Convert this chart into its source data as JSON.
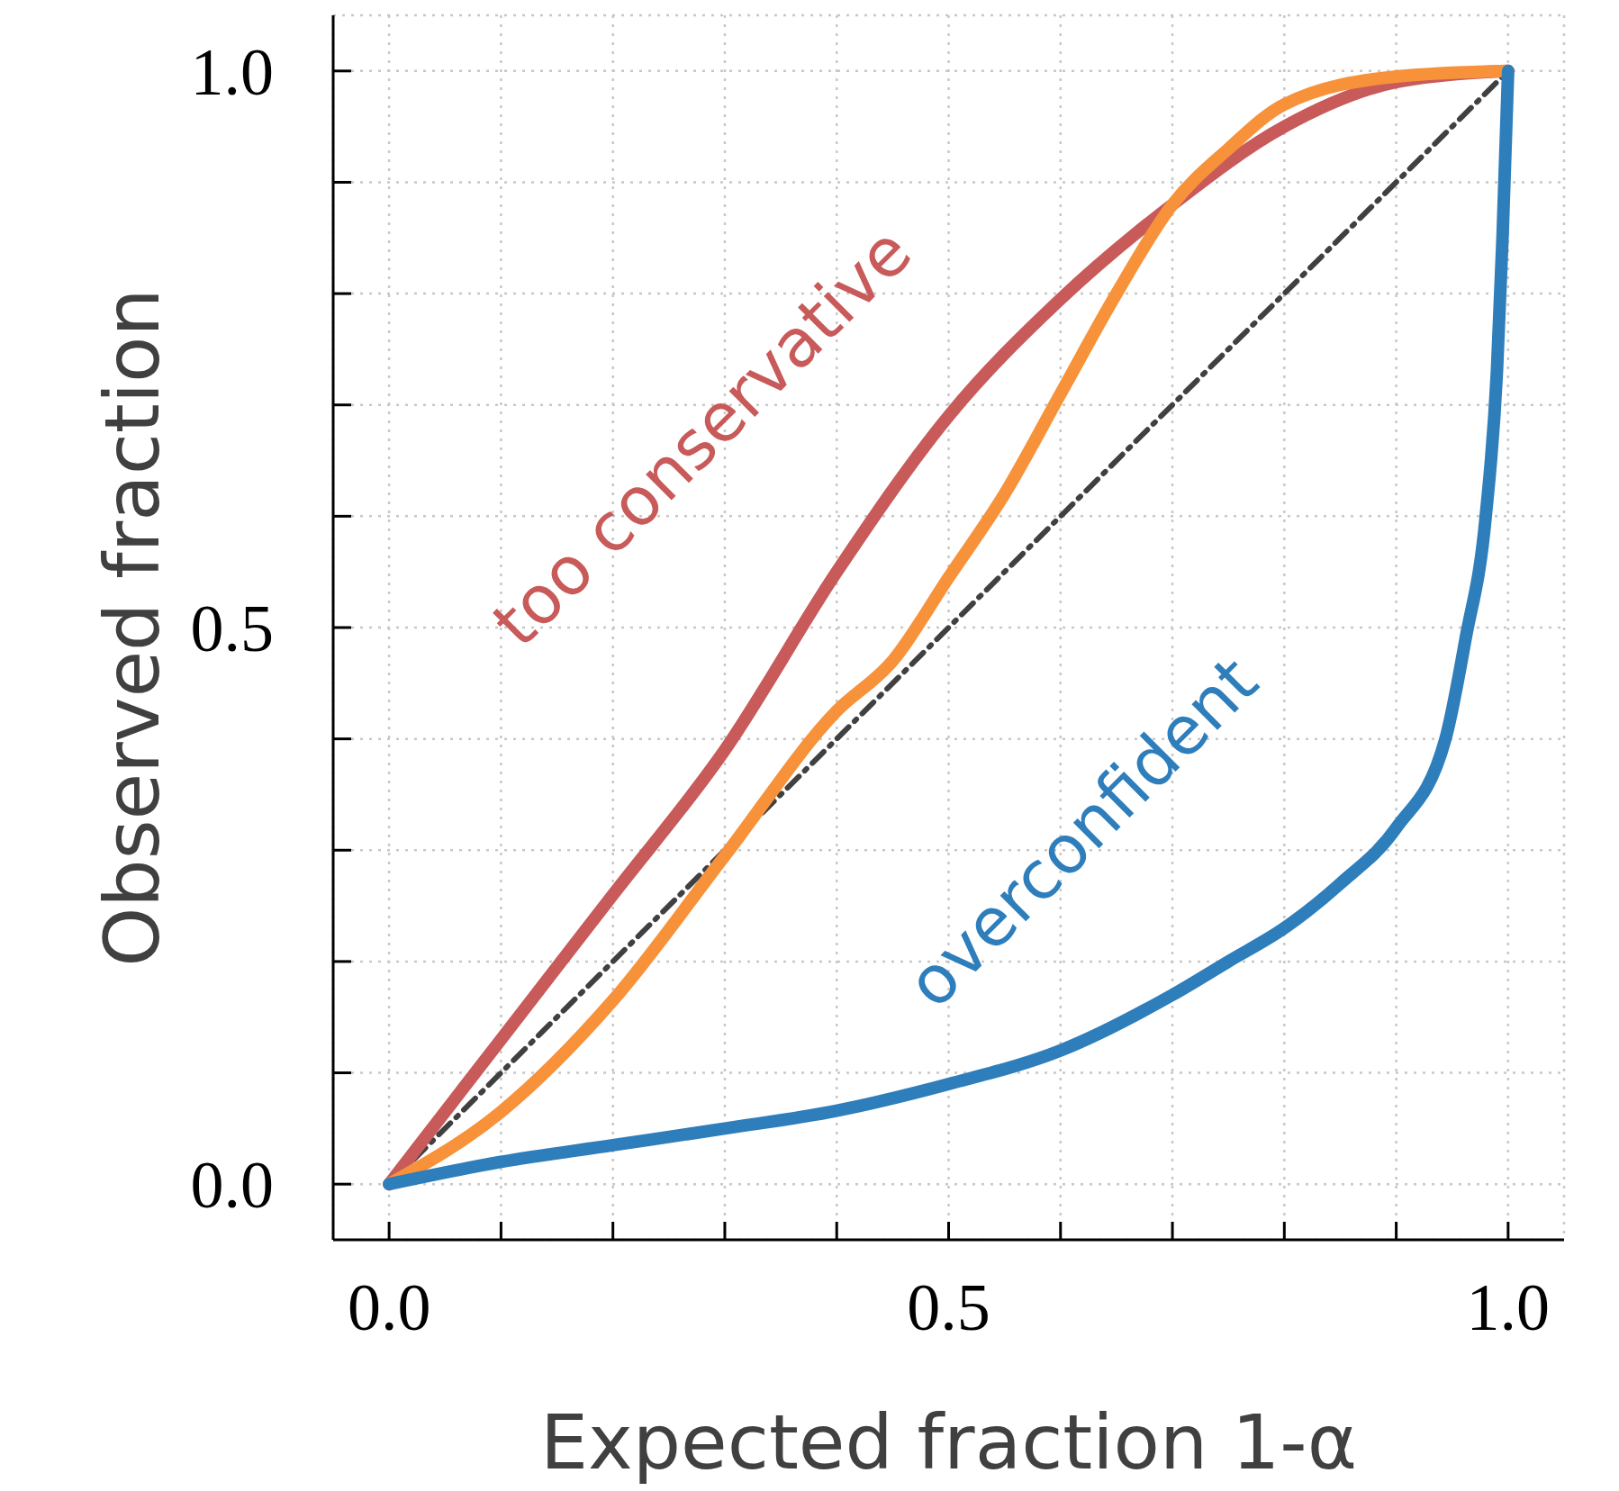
{
  "chart_data": {
    "type": "line",
    "xlabel": "Expected fraction 1-α",
    "ylabel": "Observed fraction",
    "xlim": [
      -0.05,
      1.05
    ],
    "ylim": [
      -0.05,
      1.05
    ],
    "xticks": [
      {
        "value": 0,
        "label": "0.0"
      },
      {
        "value": 0.1,
        "label": null
      },
      {
        "value": 0.2,
        "label": null
      },
      {
        "value": 0.3,
        "label": null
      },
      {
        "value": 0.4,
        "label": null
      },
      {
        "value": 0.5,
        "label": "0.5"
      },
      {
        "value": 0.6,
        "label": null
      },
      {
        "value": 0.7,
        "label": null
      },
      {
        "value": 0.8,
        "label": null
      },
      {
        "value": 0.9,
        "label": null
      },
      {
        "value": 1,
        "label": "1.0"
      }
    ],
    "yticks": [
      {
        "value": 0,
        "label": "0.0"
      },
      {
        "value": 0.1,
        "label": null
      },
      {
        "value": 0.2,
        "label": null
      },
      {
        "value": 0.3,
        "label": null
      },
      {
        "value": 0.4,
        "label": null
      },
      {
        "value": 0.5,
        "label": "0.5"
      },
      {
        "value": 0.6,
        "label": null
      },
      {
        "value": 0.7,
        "label": null
      },
      {
        "value": 0.8,
        "label": null
      },
      {
        "value": 0.9,
        "label": null
      },
      {
        "value": 1,
        "label": "1.0"
      }
    ],
    "grid": true,
    "marker": "none",
    "series": [
      {
        "color": "#404040",
        "line_style": "dashed",
        "x": [
          0,
          1
        ],
        "values": [
          0,
          1
        ]
      },
      {
        "color": "#c85a5a",
        "line_style": "solid",
        "x": [
          0,
          0.1,
          0.2,
          0.3,
          0.4,
          0.5,
          0.6,
          0.7,
          0.8,
          0.9,
          1
        ],
        "values": [
          0,
          0.13,
          0.26,
          0.39,
          0.55,
          0.69,
          0.795,
          0.88,
          0.95,
          0.99,
          1
        ]
      },
      {
        "color": "#f7923a",
        "line_style": "solid",
        "x": [
          0,
          0.1,
          0.2,
          0.3,
          0.4,
          0.45,
          0.5,
          0.55,
          0.6,
          0.65,
          0.7,
          0.75,
          0.8,
          0.9,
          1
        ],
        "values": [
          0,
          0.065,
          0.165,
          0.295,
          0.425,
          0.47,
          0.545,
          0.62,
          0.71,
          0.8,
          0.88,
          0.93,
          0.97,
          0.995,
          1
        ]
      },
      {
        "color": "#2e7ebc",
        "line_style": "solid",
        "x": [
          0,
          0.1,
          0.2,
          0.3,
          0.4,
          0.5,
          0.6,
          0.7,
          0.75,
          0.8,
          0.85,
          0.9,
          0.944,
          0.962,
          0.98,
          0.99,
          0.995,
          1
        ],
        "values": [
          0,
          0.02,
          0.035,
          0.05,
          0.066,
          0.09,
          0.12,
          0.17,
          0.2,
          0.23,
          0.27,
          0.32,
          0.4,
          0.49,
          0.6,
          0.73,
          0.85,
          1
        ]
      }
    ],
    "annotations": [
      {
        "text": "too conservative",
        "x": 0.4,
        "y": 0.55
      },
      {
        "text": "overconfident",
        "x": 0.74,
        "y": 0.195
      }
    ]
  }
}
